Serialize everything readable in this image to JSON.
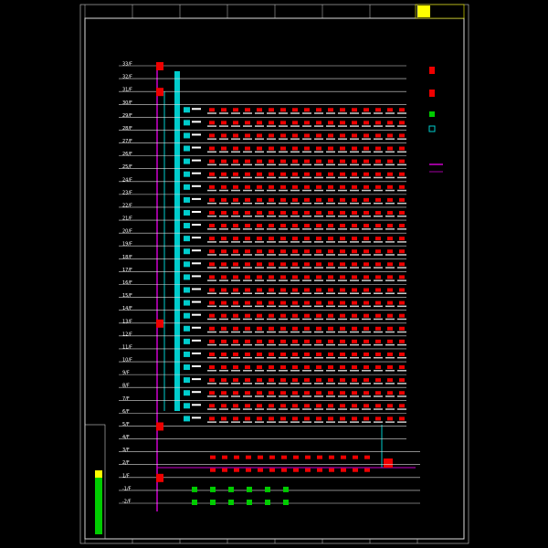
{
  "floors": [
    "33/F",
    "32/F",
    "31/F",
    "30/F",
    "29/F",
    "28/F",
    "27/F",
    "26/F",
    "25/F",
    "24/F",
    "23/F",
    "22/F",
    "21/F",
    "20/F",
    "19/F",
    "18/F",
    "17/F",
    "16/F",
    "15/F",
    "14/F",
    "13/F",
    "12/F",
    "11/F",
    "10/F",
    "9/F",
    "8/F",
    "7/F",
    "6/F",
    "5/F",
    "4/F",
    "3/F",
    "2/F",
    "1/F",
    "-1/F",
    "-2/F"
  ]
}
